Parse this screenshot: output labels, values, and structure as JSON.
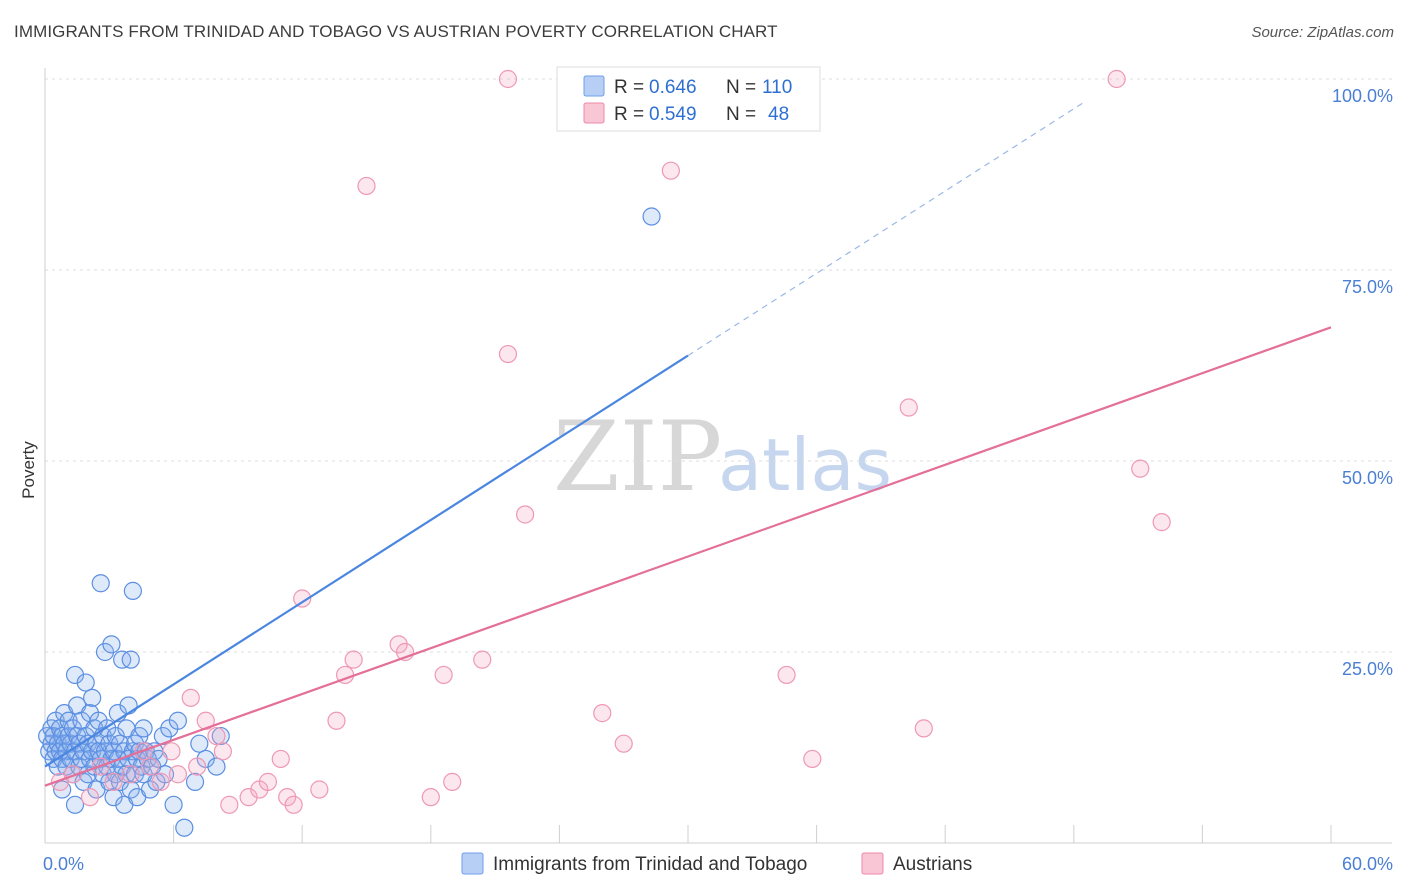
{
  "title": "IMMIGRANTS FROM TRINIDAD AND TOBAGO VS AUSTRIAN POVERTY CORRELATION CHART",
  "source": "Source: ZipAtlas.com",
  "watermark": {
    "zip": "ZIP",
    "atlas": "atlas"
  },
  "legend": {
    "r_label": "R =",
    "n_label": "N =",
    "rows": [
      {
        "name": "Immigrants from Trinidad and Tobago",
        "r": "0.646",
        "n": "110",
        "color": "#6f9fe8",
        "fill": "#b7cff5"
      },
      {
        "name": "Austrians",
        "r": "0.549",
        "n": "48",
        "color": "#ec8aa8",
        "fill": "#f8c6d5"
      }
    ]
  },
  "chart_data": {
    "type": "scatter",
    "title": "IMMIGRANTS FROM TRINIDAD AND TOBAGO VS AUSTRIAN POVERTY CORRELATION CHART",
    "xlabel": "",
    "ylabel": "Poverty",
    "xlim": [
      0,
      60
    ],
    "ylim": [
      0,
      100
    ],
    "x_tick_labels": [
      "0.0%",
      "60.0%"
    ],
    "y_ticks": [
      25,
      50,
      75,
      100
    ],
    "y_tick_labels": [
      "25.0%",
      "50.0%",
      "75.0%",
      "100.0%"
    ],
    "series": [
      {
        "name": "Immigrants from Trinidad and Tobago",
        "color": "#4a86e0",
        "trend": {
          "x0": 0,
          "y0": 10.0,
          "x1": 30,
          "y1": 63.8,
          "dashed_to_x": 48.5,
          "dashed_to_y": 97
        },
        "points": [
          [
            0.1,
            14
          ],
          [
            0.2,
            12
          ],
          [
            0.3,
            15
          ],
          [
            0.3,
            13
          ],
          [
            0.4,
            11
          ],
          [
            0.4,
            14
          ],
          [
            0.5,
            12
          ],
          [
            0.5,
            16
          ],
          [
            0.6,
            13
          ],
          [
            0.6,
            10
          ],
          [
            0.7,
            12
          ],
          [
            0.7,
            15
          ],
          [
            0.8,
            14
          ],
          [
            0.8,
            11
          ],
          [
            0.9,
            13
          ],
          [
            0.9,
            17
          ],
          [
            1.0,
            12
          ],
          [
            1.0,
            10
          ],
          [
            1.1,
            14
          ],
          [
            1.1,
            16
          ],
          [
            1.2,
            13
          ],
          [
            1.2,
            11
          ],
          [
            1.3,
            15
          ],
          [
            1.3,
            9
          ],
          [
            1.4,
            12
          ],
          [
            1.4,
            22
          ],
          [
            1.5,
            14
          ],
          [
            1.5,
            18
          ],
          [
            1.6,
            13
          ],
          [
            1.6,
            10
          ],
          [
            1.7,
            16
          ],
          [
            1.7,
            11
          ],
          [
            1.8,
            12
          ],
          [
            1.8,
            8
          ],
          [
            1.9,
            14
          ],
          [
            1.9,
            21
          ],
          [
            2.0,
            13
          ],
          [
            2.0,
            9
          ],
          [
            2.1,
            17
          ],
          [
            2.1,
            11
          ],
          [
            2.2,
            12
          ],
          [
            2.2,
            19
          ],
          [
            2.3,
            15
          ],
          [
            2.3,
            10
          ],
          [
            2.4,
            13
          ],
          [
            2.4,
            7
          ],
          [
            2.5,
            16
          ],
          [
            2.5,
            12
          ],
          [
            2.6,
            11
          ],
          [
            2.6,
            34
          ],
          [
            2.7,
            14
          ],
          [
            2.7,
            9
          ],
          [
            2.8,
            12
          ],
          [
            2.8,
            25
          ],
          [
            2.9,
            15
          ],
          [
            2.9,
            10
          ],
          [
            3.0,
            13
          ],
          [
            3.0,
            8
          ],
          [
            3.1,
            26
          ],
          [
            3.1,
            11
          ],
          [
            3.2,
            12
          ],
          [
            3.2,
            6
          ],
          [
            3.3,
            14
          ],
          [
            3.3,
            9
          ],
          [
            3.4,
            11
          ],
          [
            3.4,
            17
          ],
          [
            3.5,
            13
          ],
          [
            3.5,
            8
          ],
          [
            3.6,
            24
          ],
          [
            3.6,
            10
          ],
          [
            3.7,
            12
          ],
          [
            3.7,
            5
          ],
          [
            3.8,
            15
          ],
          [
            3.8,
            9
          ],
          [
            3.9,
            11
          ],
          [
            3.9,
            18
          ],
          [
            4.0,
            24
          ],
          [
            4.0,
            7
          ],
          [
            4.1,
            12
          ],
          [
            4.1,
            33
          ],
          [
            4.2,
            13
          ],
          [
            4.2,
            9
          ],
          [
            4.3,
            11
          ],
          [
            4.3,
            6
          ],
          [
            4.4,
            12
          ],
          [
            4.4,
            14
          ],
          [
            4.5,
            10
          ],
          [
            4.6,
            15
          ],
          [
            4.6,
            9
          ],
          [
            4.7,
            12
          ],
          [
            4.8,
            11
          ],
          [
            4.9,
            7
          ],
          [
            5.0,
            10
          ],
          [
            5.1,
            12
          ],
          [
            5.2,
            8
          ],
          [
            5.3,
            11
          ],
          [
            5.5,
            14
          ],
          [
            5.6,
            9
          ],
          [
            5.8,
            15
          ],
          [
            6.0,
            5
          ],
          [
            6.2,
            16
          ],
          [
            6.5,
            2
          ],
          [
            7.0,
            8
          ],
          [
            7.2,
            13
          ],
          [
            7.5,
            11
          ],
          [
            8.0,
            10
          ],
          [
            8.2,
            14
          ],
          [
            1.4,
            5
          ],
          [
            0.8,
            7
          ],
          [
            28.3,
            82
          ]
        ]
      },
      {
        "name": "Austrians",
        "color": "#e46f98",
        "trend": {
          "x0": 0,
          "y0": 7.5,
          "x1": 60,
          "y1": 67.5
        },
        "points": [
          [
            0.7,
            8
          ],
          [
            1.3,
            9
          ],
          [
            2.1,
            6
          ],
          [
            2.6,
            10
          ],
          [
            3.2,
            8
          ],
          [
            4.0,
            9
          ],
          [
            4.6,
            12
          ],
          [
            4.9,
            10
          ],
          [
            5.4,
            8
          ],
          [
            5.9,
            12
          ],
          [
            6.2,
            9
          ],
          [
            6.8,
            19
          ],
          [
            7.1,
            10
          ],
          [
            7.5,
            16
          ],
          [
            8.0,
            14
          ],
          [
            8.3,
            12
          ],
          [
            8.6,
            5
          ],
          [
            9.5,
            6
          ],
          [
            10.0,
            7
          ],
          [
            10.4,
            8
          ],
          [
            11.0,
            11
          ],
          [
            11.3,
            6
          ],
          [
            11.6,
            5
          ],
          [
            12.0,
            32
          ],
          [
            12.8,
            7
          ],
          [
            13.6,
            16
          ],
          [
            14.0,
            22
          ],
          [
            14.4,
            24
          ],
          [
            15.0,
            86
          ],
          [
            16.5,
            26
          ],
          [
            16.8,
            25
          ],
          [
            18.0,
            6
          ],
          [
            18.6,
            22
          ],
          [
            19.0,
            8
          ],
          [
            20.4,
            24
          ],
          [
            21.6,
            100
          ],
          [
            22.4,
            43
          ],
          [
            21.6,
            64
          ],
          [
            26.0,
            17
          ],
          [
            27.0,
            13
          ],
          [
            29.2,
            88
          ],
          [
            34.6,
            22
          ],
          [
            35.8,
            11
          ],
          [
            40.3,
            57
          ],
          [
            41.0,
            15
          ],
          [
            50.0,
            100
          ],
          [
            51.1,
            49
          ],
          [
            52.1,
            42
          ]
        ]
      }
    ]
  }
}
